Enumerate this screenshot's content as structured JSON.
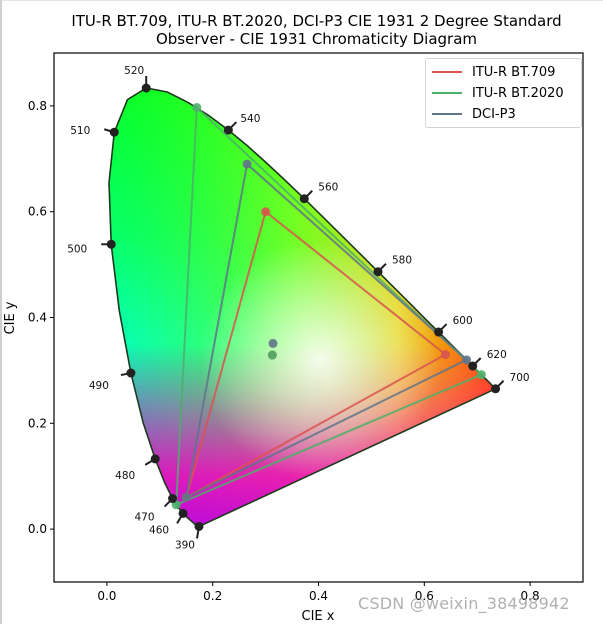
{
  "title": {
    "line1": "ITU-R BT.709, ITU-R BT.2020, DCI-P3 CIE 1931 2 Degree Standard",
    "line2": "Observer - CIE 1931 Chromaticity Diagram"
  },
  "axes": {
    "xlabel": "CIE x",
    "ylabel": "CIE y",
    "x_ticks": [
      "0.0",
      "0.2",
      "0.4",
      "0.6",
      "0.8"
    ],
    "y_ticks": [
      "0.0",
      "0.2",
      "0.4",
      "0.6",
      "0.8"
    ]
  },
  "legend": {
    "items": [
      {
        "label": "ITU-R BT.709",
        "color": "#d9534f"
      },
      {
        "label": "ITU-R BT.2020",
        "color": "#4caf6a"
      },
      {
        "label": "DCI-P3",
        "color": "#5f7488"
      }
    ]
  },
  "watermark": "CSDN @weixin_38498942",
  "chart_data": {
    "type": "scatter",
    "title": "ITU-R BT.709, ITU-R BT.2020, DCI-P3 CIE 1931 2 Degree Standard Observer - CIE 1931 Chromaticity Diagram",
    "xlabel": "CIE x",
    "ylabel": "CIE y",
    "xlim": [
      -0.1,
      0.9
    ],
    "ylim": [
      -0.1,
      0.9
    ],
    "grid": false,
    "legend_position": "upper right",
    "spectral_locus_labels": [
      {
        "nm": 390,
        "x": 0.1741,
        "y": 0.005
      },
      {
        "nm": 460,
        "x": 0.144,
        "y": 0.0297
      },
      {
        "nm": 470,
        "x": 0.1241,
        "y": 0.0578
      },
      {
        "nm": 480,
        "x": 0.0913,
        "y": 0.1327
      },
      {
        "nm": 490,
        "x": 0.0454,
        "y": 0.295
      },
      {
        "nm": 500,
        "x": 0.0082,
        "y": 0.5384
      },
      {
        "nm": 510,
        "x": 0.0139,
        "y": 0.7502
      },
      {
        "nm": 520,
        "x": 0.0743,
        "y": 0.8338
      },
      {
        "nm": 540,
        "x": 0.2296,
        "y": 0.7543
      },
      {
        "nm": 560,
        "x": 0.3731,
        "y": 0.6245
      },
      {
        "nm": 580,
        "x": 0.5125,
        "y": 0.4866
      },
      {
        "nm": 600,
        "x": 0.627,
        "y": 0.3725
      },
      {
        "nm": 620,
        "x": 0.6915,
        "y": 0.3083
      },
      {
        "nm": 700,
        "x": 0.7347,
        "y": 0.2653
      }
    ],
    "series": [
      {
        "name": "ITU-R BT.709",
        "color": "#d9534f",
        "primaries": {
          "R": [
            0.64,
            0.33
          ],
          "G": [
            0.3,
            0.6
          ],
          "B": [
            0.15,
            0.06
          ]
        },
        "whitepoint": [
          0.3127,
          0.329
        ]
      },
      {
        "name": "ITU-R BT.2020",
        "color": "#4caf6a",
        "primaries": {
          "R": [
            0.708,
            0.292
          ],
          "G": [
            0.17,
            0.797
          ],
          "B": [
            0.131,
            0.046
          ]
        },
        "whitepoint": [
          0.3127,
          0.329
        ]
      },
      {
        "name": "DCI-P3",
        "color": "#5f7488",
        "primaries": {
          "R": [
            0.68,
            0.32
          ],
          "G": [
            0.265,
            0.69
          ],
          "B": [
            0.15,
            0.06
          ]
        },
        "whitepoint": [
          0.314,
          0.351
        ]
      }
    ]
  }
}
